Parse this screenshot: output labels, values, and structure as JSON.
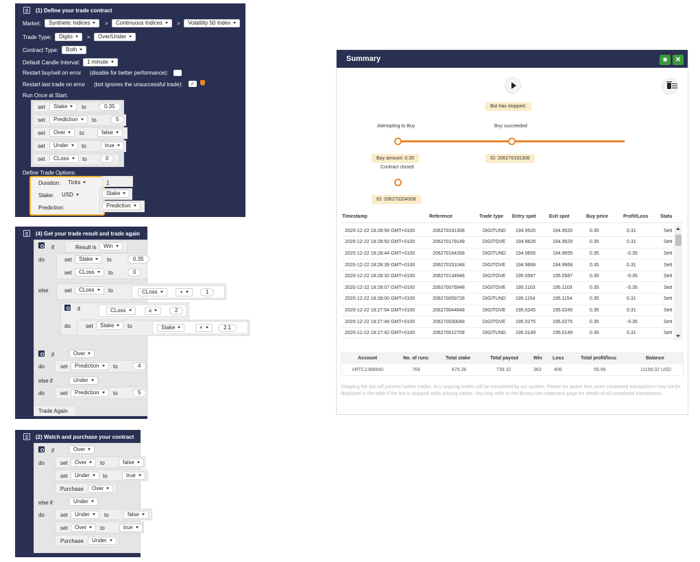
{
  "block_define": {
    "title": "(1) Define your trade contract",
    "market_label": "Market:",
    "market": [
      "Synthetic Indices",
      "Continuous Indices",
      "Volatility 50 Index"
    ],
    "sep": ">",
    "trade_type_label": "Trade Type:",
    "trade_type": [
      "Digits",
      "Over/Under"
    ],
    "contract_type_label": "Contract Type:",
    "contract_type": "Both",
    "candle_label": "Default Candle Interval:",
    "candle": "1 minute",
    "restart_label": "Restart buy/sell on error",
    "restart_hint": "(disable for better performance):",
    "restart_last_label": "Restart last trade on error",
    "restart_last_hint": "(bot ignores the unsuccessful trade):",
    "check_mark": "✓",
    "run_once_label": "Run Once at Start:",
    "set_rows": [
      {
        "set": "set",
        "var": "Stake",
        "to": "to",
        "value": "0.35"
      },
      {
        "set": "set",
        "var": "Prediction",
        "to": "to",
        "value": "5"
      },
      {
        "set": "set",
        "var": "Over",
        "to": "to",
        "value": "false"
      },
      {
        "set": "set",
        "var": "Under",
        "to": "to",
        "value": "true"
      },
      {
        "set": "set",
        "var": "CLoss",
        "to": "to",
        "value": "0"
      }
    ],
    "options_label": "Define Trade Options:",
    "duration_label": "Duration:",
    "duration_unit": "Ticks",
    "duration_value": "1",
    "stake_label": "Stake:",
    "stake_currency": "USD",
    "stake_var": "Stake",
    "prediction_label": "Prediction:",
    "prediction_var": "Prediction"
  },
  "block_result": {
    "title": "(4) Get your trade result and trade again",
    "if": "if",
    "do": "do",
    "else": "else",
    "else_if": "else if",
    "result_is": "Result is",
    "result_value": "Win",
    "set": "set",
    "to": "to",
    "stake_var": "Stake",
    "stake_val": "0.35",
    "closs_var": "CLoss",
    "closs_val": "0",
    "else_op": "+",
    "else_one": "1",
    "cmp_op": "≥",
    "cmp_val": "2",
    "mul_op": "×",
    "mul_val": "2.1",
    "over": "Over",
    "under": "Under",
    "prediction_var": "Prediction",
    "pred_over": "4",
    "pred_under": "5",
    "trade_again": "Trade Again"
  },
  "block_purchase": {
    "title": "(2) Watch and purchase your contract",
    "if": "if",
    "do": "do",
    "else_if": "else if",
    "set": "set",
    "to": "to",
    "over": "Over",
    "under": "Under",
    "false": "false",
    "true": "true",
    "purchase": "Purchase"
  },
  "summary": {
    "title": "Summary",
    "status": "Bot has stopped.",
    "attempting": "Attempting to Buy",
    "buy_succeeded": "Buy succeeded",
    "buy_amount": "Buy amount: 0.35",
    "id_1": "ID: 206270191308",
    "contract_closed": "Contract closed",
    "id_2": "ID: 206270204308",
    "columns": [
      "Timestamp",
      "Reference",
      "Trade type",
      "Entry spot",
      "Exit spot",
      "Buy price",
      "Profit/Loss",
      "Statu"
    ],
    "rows": [
      [
        "2020-12-22 18:28:56 GMT+0100",
        "206270191308",
        "DIGITUND",
        "194.9520",
        "194.9520",
        "0.35",
        "0.31",
        "Sett"
      ],
      [
        "2020-12-22 18:28:50 GMT+0100",
        "206270179148",
        "DIGITOVE",
        "194.9629",
        "194.9629",
        "0.35",
        "0.31",
        "Sett"
      ],
      [
        "2020-12-22 18:28:44 GMT+0100",
        "206270164268",
        "DIGITUND",
        "194.9655",
        "194.9655",
        "0.35",
        "-0.35",
        "Sett"
      ],
      [
        "2020-12-22 18:28:39 GMT+0100",
        "206270151048",
        "DIGITOVE",
        "194.9668",
        "194.9668",
        "0.35",
        "0.31",
        "Sett"
      ],
      [
        "2020-12-22 18:28:32 GMT+0100",
        "206270134948",
        "DIGITOVE",
        "195.0587",
        "195.0587",
        "0.35",
        "-0.35",
        "Sett"
      ],
      [
        "2020-12-22 18:28:07 GMT+0100",
        "206270076948",
        "DIGITOVE",
        "195.1103",
        "195.1103",
        "0.35",
        "-0.35",
        "Sett"
      ],
      [
        "2020-12-22 18:28:00 GMT+0100",
        "206270059728",
        "DIGITUND",
        "195.1154",
        "195.1154",
        "0.35",
        "0.31",
        "Sett"
      ],
      [
        "2020-12-22 18:27:54 GMT+0100",
        "206270044848",
        "DIGITOVE",
        "195.0245",
        "195.0245",
        "0.35",
        "0.31",
        "Sett"
      ],
      [
        "2020-12-22 18:27:48 GMT+0100",
        "206270030048",
        "DIGITOVE",
        "195.0275",
        "195.0275",
        "0.35",
        "-0.35",
        "Sett"
      ],
      [
        "2020-12-22 18:27:42 GMT+0100",
        "206270012708",
        "DIGITUND",
        "195.0149",
        "195.0149",
        "0.35",
        "0.31",
        "Sett"
      ]
    ],
    "totals_headers": [
      "Account",
      "No. of runs",
      "Total stake",
      "Total payout",
      "Win",
      "Loss",
      "Total profit/loss",
      "Balance"
    ],
    "totals": [
      "VRTC1388640",
      "769",
      "679.36",
      "739.32",
      "363",
      "406",
      "59.96",
      "11156.02 USD"
    ],
    "note": "Stopping the bot will prevent further trades. Any ongoing trades will be completed by our system. Please be aware that some completed transactions may not be displayed in the table if the bot is stopped while placing trades. You may refer to the Binary.com statement page for details of all completed transactions.",
    "colors": {
      "header": "#2a3052",
      "green": "#3a9a3e",
      "orange": "#e8862a",
      "profit": "#2a9a3a",
      "loss": "#e04545"
    }
  }
}
